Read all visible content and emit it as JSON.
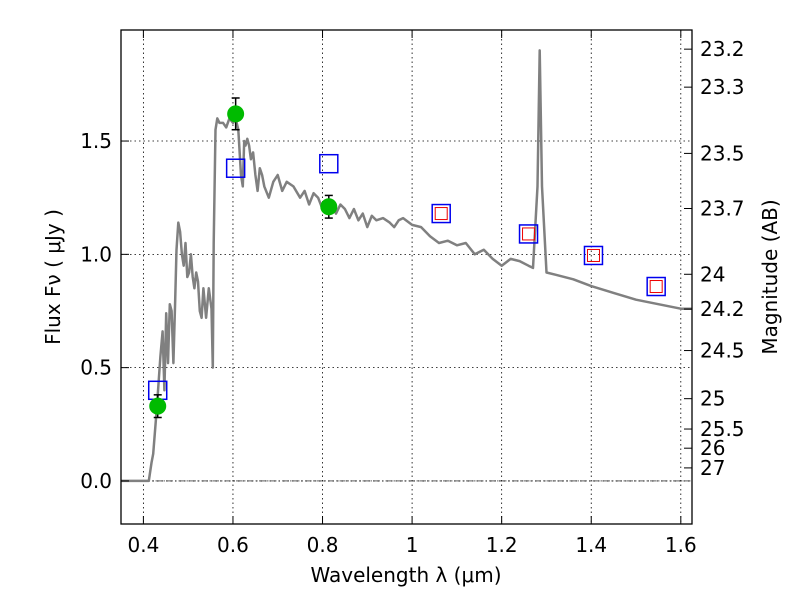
{
  "chart_data": {
    "type": "scatter",
    "xlabel": "Wavelength  λ (μm)",
    "ylabel": "Flux  Fν  ( μJy )",
    "y2label": "Magnitude (AB)",
    "xlim": [
      0.35,
      1.625
    ],
    "ylim": [
      -0.19,
      1.99
    ],
    "x_ticks": [
      0.4,
      0.6,
      0.8,
      1.0,
      1.2,
      1.4,
      1.6
    ],
    "x_tick_labels": [
      "0.4",
      "0.6",
      "0.8",
      "1",
      "1.2",
      "1.4",
      "1.6"
    ],
    "y_ticks": [
      0.0,
      0.5,
      1.0,
      1.5
    ],
    "y_tick_labels": [
      "0.0",
      "0.5",
      "1.0",
      "1.5"
    ],
    "magnitude_ticks": [
      "23.2",
      "23.3",
      "23.5",
      "23.7",
      "24",
      "24.2",
      "24.5",
      "25",
      "25.5",
      "26",
      "27"
    ],
    "grid": true,
    "zero_line": true,
    "sed_model": {
      "color": "#808080",
      "x": [
        0.35,
        0.412,
        0.418,
        0.422,
        0.43,
        0.438,
        0.443,
        0.447,
        0.451,
        0.455,
        0.459,
        0.463,
        0.467,
        0.471,
        0.474,
        0.478,
        0.482,
        0.486,
        0.49,
        0.494,
        0.498,
        0.502,
        0.506,
        0.51,
        0.514,
        0.518,
        0.522,
        0.526,
        0.53,
        0.534,
        0.54,
        0.546,
        0.552,
        0.555,
        0.557,
        0.561,
        0.565,
        0.57,
        0.578,
        0.585,
        0.592,
        0.6,
        0.606,
        0.612,
        0.618,
        0.622,
        0.625,
        0.628,
        0.632,
        0.636,
        0.64,
        0.645,
        0.65,
        0.655,
        0.66,
        0.665,
        0.67,
        0.68,
        0.69,
        0.7,
        0.71,
        0.72,
        0.735,
        0.75,
        0.76,
        0.77,
        0.78,
        0.79,
        0.8,
        0.81,
        0.82,
        0.83,
        0.84,
        0.85,
        0.86,
        0.87,
        0.88,
        0.89,
        0.9,
        0.91,
        0.92,
        0.935,
        0.95,
        0.96,
        0.97,
        0.98,
        1.0,
        1.02,
        1.04,
        1.06,
        1.08,
        1.1,
        1.12,
        1.14,
        1.16,
        1.18,
        1.2,
        1.22,
        1.24,
        1.26,
        1.27,
        1.28,
        1.285,
        1.29,
        1.3,
        1.32,
        1.36,
        1.4,
        1.45,
        1.5,
        1.55,
        1.6,
        1.625
      ],
      "y": [
        0.0,
        0.0,
        0.08,
        0.12,
        0.32,
        0.55,
        0.66,
        0.4,
        0.74,
        0.52,
        0.78,
        0.75,
        0.52,
        0.8,
        1.02,
        1.14,
        1.1,
        1.0,
        0.95,
        1.05,
        0.9,
        0.92,
        1.0,
        0.9,
        0.85,
        0.92,
        0.88,
        0.75,
        0.72,
        0.85,
        0.72,
        0.85,
        0.76,
        0.5,
        1.05,
        1.55,
        1.6,
        1.58,
        1.58,
        1.56,
        1.6,
        1.58,
        1.6,
        1.55,
        1.35,
        1.3,
        1.5,
        1.48,
        1.51,
        1.48,
        1.42,
        1.45,
        1.35,
        1.28,
        1.38,
        1.35,
        1.3,
        1.25,
        1.32,
        1.35,
        1.28,
        1.32,
        1.3,
        1.25,
        1.28,
        1.22,
        1.27,
        1.25,
        1.2,
        1.24,
        1.22,
        1.18,
        1.22,
        1.2,
        1.16,
        1.2,
        1.15,
        1.18,
        1.12,
        1.17,
        1.15,
        1.16,
        1.14,
        1.12,
        1.15,
        1.16,
        1.13,
        1.12,
        1.08,
        1.05,
        1.06,
        1.04,
        1.05,
        1.0,
        1.02,
        0.98,
        0.95,
        0.98,
        0.97,
        0.95,
        0.94,
        1.3,
        1.9,
        1.3,
        0.92,
        0.91,
        0.89,
        0.86,
        0.83,
        0.8,
        0.78,
        0.76,
        0.76
      ]
    },
    "observed_photometry": {
      "marker": "green-circle",
      "color": "#00bb00",
      "points": [
        {
          "x": 0.432,
          "y": 0.33,
          "err": 0.05
        },
        {
          "x": 0.606,
          "y": 1.62,
          "err": 0.07
        },
        {
          "x": 0.814,
          "y": 1.21,
          "err": 0.05
        }
      ]
    },
    "model_photometry": {
      "marker": "blue-square",
      "color": "#0000ee",
      "points": [
        {
          "x": 0.432,
          "y": 0.4
        },
        {
          "x": 0.606,
          "y": 1.38
        },
        {
          "x": 0.814,
          "y": 1.4
        },
        {
          "x": 1.065,
          "y": 1.18
        },
        {
          "x": 1.26,
          "y": 1.09
        },
        {
          "x": 1.405,
          "y": 0.995
        },
        {
          "x": 1.545,
          "y": 0.858
        }
      ]
    },
    "upper_limit_markers": {
      "marker": "red-square",
      "color": "#ee0000",
      "points": [
        {
          "x": 1.065,
          "y": 1.18
        },
        {
          "x": 1.26,
          "y": 1.09
        },
        {
          "x": 1.405,
          "y": 0.995
        },
        {
          "x": 1.545,
          "y": 0.858
        }
      ]
    }
  }
}
